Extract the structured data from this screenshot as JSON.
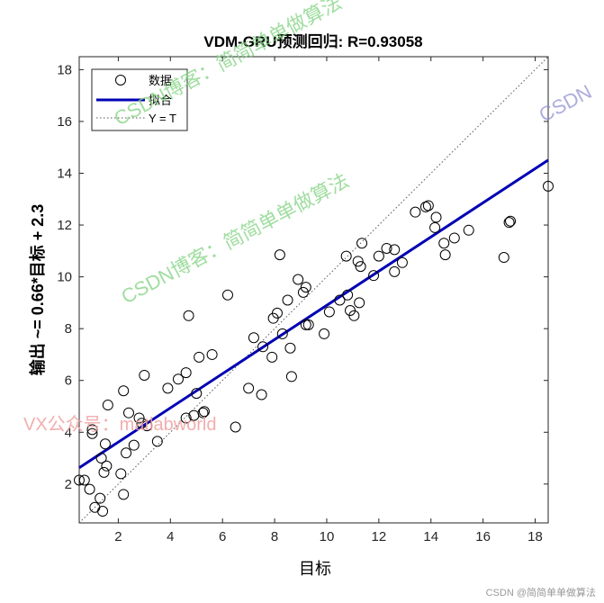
{
  "chart_data": {
    "type": "scatter",
    "title": "VDM-GRU预测回归: R=0.93058",
    "xlabel": "目标",
    "ylabel": "输出 ~= 0.66*目标 + 2.3",
    "xlim": [
      0.5,
      18.5
    ],
    "ylim": [
      0.5,
      18.5
    ],
    "xticks": [
      2,
      4,
      6,
      8,
      10,
      12,
      14,
      16,
      18
    ],
    "yticks": [
      2,
      4,
      6,
      8,
      10,
      12,
      14,
      16,
      18
    ],
    "grid": false,
    "legend_position": "top-left",
    "legend": [
      "数据",
      "拟合",
      "Y = T"
    ],
    "fit": {
      "slope": 0.66,
      "intercept": 2.3,
      "color": "#0000b4"
    },
    "identity_line": {
      "style": "dotted",
      "color": "#555555"
    },
    "points": [
      [
        0.5,
        2.15
      ],
      [
        0.7,
        2.15
      ],
      [
        0.9,
        1.8
      ],
      [
        1.0,
        3.95
      ],
      [
        1.0,
        4.1
      ],
      [
        1.1,
        1.1
      ],
      [
        1.3,
        1.45
      ],
      [
        1.35,
        3.0
      ],
      [
        1.4,
        0.95
      ],
      [
        1.45,
        2.45
      ],
      [
        1.5,
        3.55
      ],
      [
        1.55,
        2.7
      ],
      [
        1.6,
        5.05
      ],
      [
        2.1,
        2.4
      ],
      [
        2.2,
        5.6
      ],
      [
        2.2,
        1.6
      ],
      [
        2.3,
        3.2
      ],
      [
        2.4,
        4.75
      ],
      [
        2.6,
        3.5
      ],
      [
        2.8,
        4.55
      ],
      [
        2.9,
        4.35
      ],
      [
        3.0,
        6.2
      ],
      [
        3.1,
        4.25
      ],
      [
        3.5,
        3.65
      ],
      [
        3.9,
        5.7
      ],
      [
        4.3,
        6.05
      ],
      [
        4.6,
        6.3
      ],
      [
        4.6,
        4.55
      ],
      [
        4.9,
        4.65
      ],
      [
        4.7,
        8.5
      ],
      [
        5.0,
        5.5
      ],
      [
        5.1,
        6.9
      ],
      [
        5.3,
        4.8
      ],
      [
        5.25,
        4.75
      ],
      [
        5.6,
        7.0
      ],
      [
        6.2,
        9.3
      ],
      [
        6.5,
        4.2
      ],
      [
        7.0,
        5.7
      ],
      [
        7.2,
        7.65
      ],
      [
        7.5,
        5.45
      ],
      [
        7.55,
        7.3
      ],
      [
        7.9,
        6.9
      ],
      [
        7.95,
        8.4
      ],
      [
        8.1,
        8.6
      ],
      [
        8.2,
        10.85
      ],
      [
        8.3,
        7.8
      ],
      [
        8.5,
        9.1
      ],
      [
        8.6,
        7.25
      ],
      [
        8.65,
        6.15
      ],
      [
        8.9,
        9.9
      ],
      [
        9.1,
        9.4
      ],
      [
        9.2,
        9.6
      ],
      [
        9.2,
        8.15
      ],
      [
        9.3,
        8.15
      ],
      [
        9.9,
        7.8
      ],
      [
        10.1,
        8.65
      ],
      [
        10.5,
        9.1
      ],
      [
        10.75,
        10.8
      ],
      [
        10.8,
        9.3
      ],
      [
        10.9,
        8.7
      ],
      [
        11.05,
        8.5
      ],
      [
        11.2,
        10.6
      ],
      [
        11.25,
        9.0
      ],
      [
        11.3,
        10.4
      ],
      [
        11.35,
        11.3
      ],
      [
        11.8,
        10.05
      ],
      [
        12.0,
        10.8
      ],
      [
        12.3,
        11.1
      ],
      [
        12.6,
        11.05
      ],
      [
        12.6,
        10.2
      ],
      [
        12.9,
        10.55
      ],
      [
        13.4,
        12.5
      ],
      [
        13.8,
        12.7
      ],
      [
        13.9,
        12.75
      ],
      [
        14.15,
        11.9
      ],
      [
        14.2,
        12.3
      ],
      [
        14.5,
        11.3
      ],
      [
        14.55,
        10.85
      ],
      [
        14.9,
        11.5
      ],
      [
        15.45,
        11.8
      ],
      [
        16.8,
        10.75
      ],
      [
        17.0,
        12.1
      ],
      [
        17.05,
        12.15
      ],
      [
        18.5,
        13.5
      ]
    ]
  },
  "watermarks": {
    "csdn_top": "CSDN博客：简简单单做算法",
    "csdn_mid": "CSDN博客：简简单单做算法",
    "csdn_right": "CSDN",
    "vx": "VX公众号：matlabworld"
  },
  "footer": "CSDN @简简单单做算法"
}
